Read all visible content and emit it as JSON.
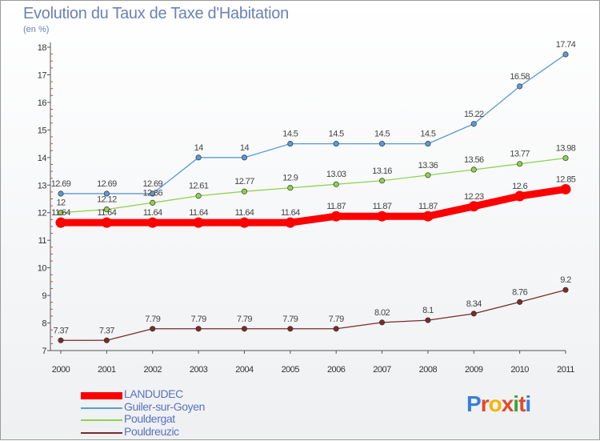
{
  "title": "Evolution du Taux de Taxe d'Habitation",
  "subtitle": "(en %)",
  "logo": {
    "text": [
      "P",
      "r",
      "o",
      "x",
      "i",
      "t",
      "i"
    ],
    "colors": [
      "#3b7dd8",
      "#e04a2a",
      "#f4b400",
      "#e04a2a",
      "#3aa53a",
      "#e04a2a",
      "#3b7dd8"
    ]
  },
  "chart_data": {
    "type": "line",
    "x": [
      "2000",
      "2001",
      "2002",
      "2003",
      "2004",
      "2005",
      "2006",
      "2007",
      "2008",
      "2009",
      "2010",
      "2011"
    ],
    "ylim": [
      7,
      18
    ],
    "yticks": [
      7,
      8,
      9,
      10,
      11,
      12,
      13,
      14,
      15,
      16,
      17,
      18
    ],
    "ytick_labels": [
      "7",
      "8",
      "9",
      "10",
      "11",
      "12",
      "13",
      "14",
      "15",
      "16",
      "17",
      "18"
    ],
    "grid": false,
    "legend_position": "bottom-left",
    "series": [
      {
        "name": "LANDUDEC",
        "color": "#ff0000",
        "values": [
          11.64,
          11.64,
          11.64,
          11.64,
          11.64,
          11.64,
          11.87,
          11.87,
          11.87,
          12.23,
          12.6,
          12.85
        ],
        "labels": [
          "11.64",
          "11.64",
          "11.64",
          "11.64",
          "11.64",
          "11.64",
          "11.87",
          "11.87",
          "11.87",
          "12.23",
          "12.6",
          "12.85"
        ]
      },
      {
        "name": "Guiler-sur-Goyen",
        "color": "#5b9bd5",
        "values": [
          12.69,
          12.69,
          12.69,
          14,
          14,
          14.5,
          14.5,
          14.5,
          14.5,
          15.22,
          16.58,
          17.74
        ],
        "labels": [
          "12.69",
          "12.69",
          "12.69",
          "14",
          "14",
          "14.5",
          "14.5",
          "14.5",
          "14.5",
          "15.22",
          "16.58",
          "17.74"
        ]
      },
      {
        "name": "Pouldergat",
        "color": "#8fd14f",
        "values": [
          12,
          12.12,
          12.36,
          12.61,
          12.77,
          12.9,
          13.03,
          13.16,
          13.36,
          13.56,
          13.77,
          13.98
        ],
        "labels": [
          "12",
          "12.12",
          "12.36",
          "12.61",
          "12.77",
          "12.9",
          "13.03",
          "13.16",
          "13.36",
          "13.56",
          "13.77",
          "13.98"
        ]
      },
      {
        "name": "Pouldreuzic",
        "color": "#7b2a2a",
        "values": [
          7.37,
          7.37,
          7.79,
          7.79,
          7.79,
          7.79,
          7.79,
          8.02,
          8.1,
          8.34,
          8.76,
          9.2
        ],
        "labels": [
          "7.37",
          "7.37",
          "7.79",
          "7.79",
          "7.79",
          "7.79",
          "7.79",
          "8.02",
          "8.1",
          "8.34",
          "8.76",
          "9.2"
        ]
      }
    ]
  }
}
